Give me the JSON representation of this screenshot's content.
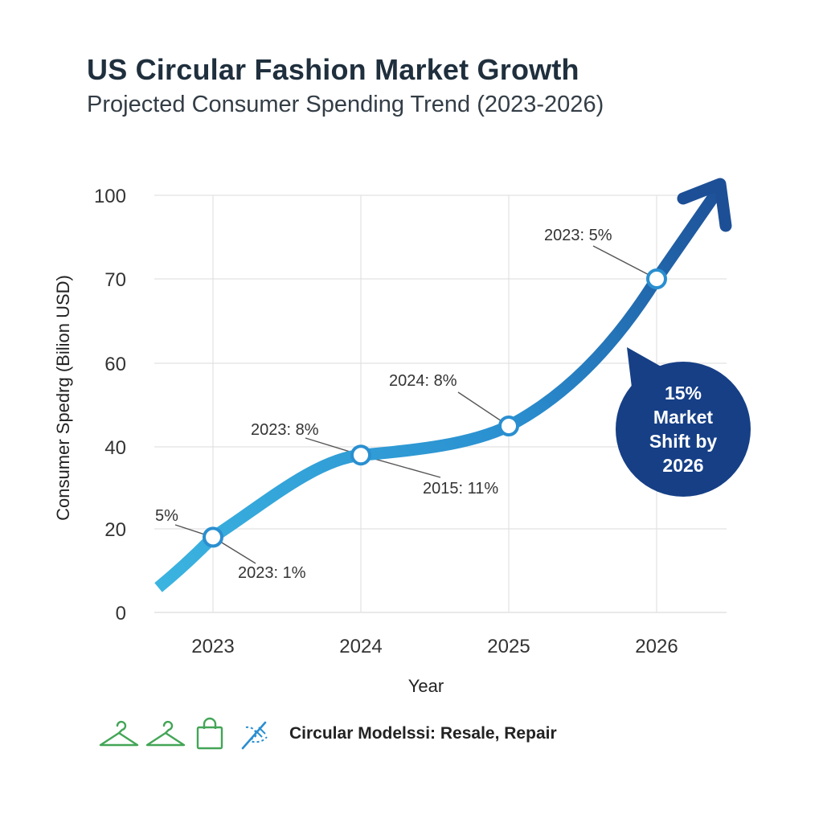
{
  "header": {
    "title": "US Circular Fashion Market Growth",
    "subtitle": "Projected Consumer Spending Trend (2023-2026)"
  },
  "chart_data": {
    "type": "line",
    "title": "US Circular Fashion Market Growth",
    "subtitle": "Projected Consumer Spending Trend (2023-2026)",
    "xlabel": "Year",
    "ylabel": "Consumer Spedrg (Bilion USD)",
    "categories": [
      "2023",
      "2024",
      "2025",
      "2026"
    ],
    "y_ticks": [
      0,
      20,
      40,
      60,
      70,
      100
    ],
    "ylim": [
      0,
      100
    ],
    "grid": true,
    "series": [
      {
        "values": [
          18,
          38,
          45,
          70
        ],
        "color": "#2e86c8"
      }
    ],
    "annotations": [
      "5%",
      "2023: 1%",
      "2023: 8%",
      "2015: 11%",
      "2024: 8%",
      "2023: 5%"
    ],
    "callout": [
      "15%",
      "Market",
      "Shift by",
      "2026"
    ],
    "colors": {
      "line_start": "#3bb4e0",
      "line_end": "#1d4f96",
      "callout": "#163f86",
      "grid": "#e2e2e2"
    }
  },
  "footer": {
    "icons": [
      "hanger-icon",
      "hanger-icon",
      "shopping-bag-icon",
      "sewing-needle-icon"
    ],
    "icon_color": "#43a557",
    "needle_color": "#2a8fd0",
    "legend_text": "Circular Modelssi: Resale, Repair"
  }
}
